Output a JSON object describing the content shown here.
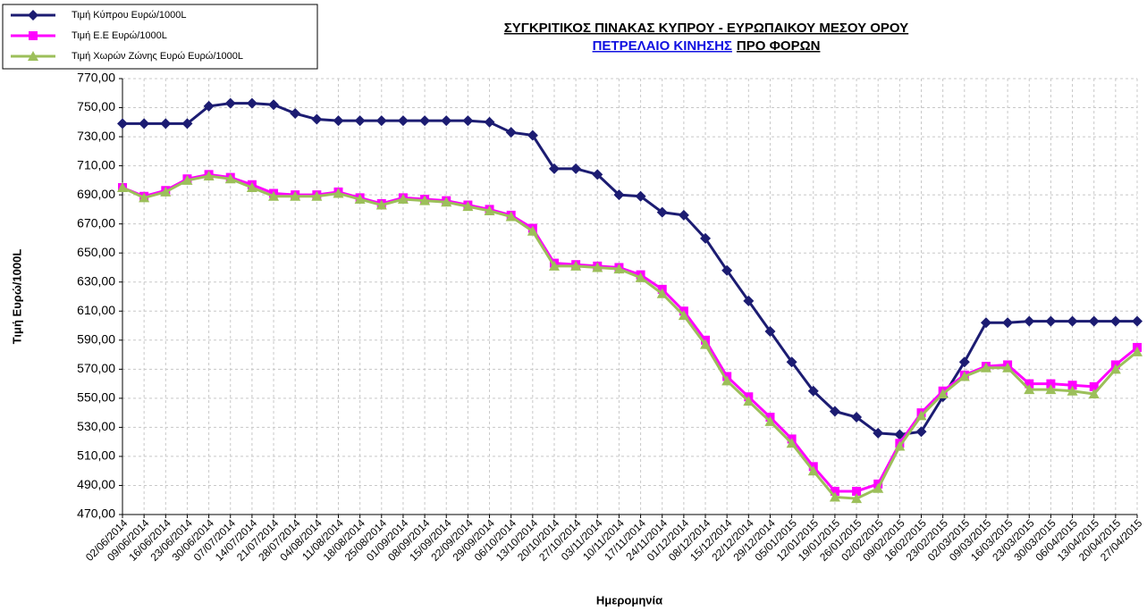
{
  "chart_data": {
    "type": "line",
    "title": "ΣΥΓΚΡΙΤΙΚΟΣ ΠΙΝΑΚΑΣ ΚΥΠΡΟΥ - ΕΥΡΩΠΑΙΚΟΥ ΜΕΣΟΥ ΟΡΟΥ",
    "subtitle": [
      "ΠΕΤΡΕΛΑΙΟ ΚΙΝΗΣΗΣ",
      "ΠΡΟ ΦΟΡΩΝ"
    ],
    "xlabel": "Ημερομηνία",
    "ylabel": "Τιμή Ευρώ/1000L",
    "categories": [
      "02/06/2014",
      "09/06/2014",
      "16/06/2014",
      "23/06/2014",
      "30/06/2014",
      "07/07/2014",
      "14/07/2014",
      "21/07/2014",
      "28/07/2014",
      "04/08/2014",
      "11/08/2014",
      "18/08/2014",
      "25/08/2014",
      "01/09/2014",
      "08/09/2014",
      "15/09/2014",
      "22/09/2014",
      "29/09/2014",
      "06/10/2014",
      "13/10/2014",
      "20/10/2014",
      "27/10/2014",
      "03/11/2014",
      "10/11/2014",
      "17/11/2014",
      "24/11/2014",
      "01/12/2014",
      "08/12/2014",
      "15/12/2014",
      "22/12/2014",
      "29/12/2014",
      "05/01/2015",
      "12/01/2015",
      "19/01/2015",
      "26/01/2015",
      "02/02/2015",
      "09/02/2015",
      "16/02/2015",
      "23/02/2015",
      "02/03/2015",
      "09/03/2015",
      "16/03/2015",
      "23/03/2015",
      "30/03/2015",
      "06/04/2015",
      "13/04/2015",
      "20/04/2015",
      "27/04/2015"
    ],
    "series": [
      {
        "name": "Τιμή Κύπρου Ευρώ/1000L",
        "color": "#1c1c72",
        "marker": "diamond",
        "values": [
          739,
          739,
          739,
          739,
          751,
          753,
          753,
          752,
          746,
          742,
          741,
          741,
          741,
          741,
          741,
          741,
          741,
          740,
          733,
          731,
          708,
          708,
          704,
          690,
          689,
          678,
          676,
          660,
          638,
          617,
          596,
          575,
          555,
          541,
          537,
          526,
          525,
          527,
          551,
          575,
          602,
          602,
          603,
          603,
          603,
          603,
          603,
          603
        ]
      },
      {
        "name": "Τιμή Ε.Ε Ευρώ/1000L",
        "color": "#ff00ff",
        "marker": "square",
        "values": [
          695,
          689,
          693,
          701,
          704,
          702,
          697,
          691,
          690,
          690,
          692,
          688,
          684,
          688,
          687,
          686,
          683,
          680,
          676,
          667,
          643,
          642,
          641,
          640,
          635,
          625,
          610,
          590,
          565,
          551,
          537,
          522,
          503,
          486,
          486,
          491,
          519,
          540,
          555,
          566,
          572,
          573,
          560,
          560,
          559,
          558,
          573,
          585
        ]
      },
      {
        "name": "Τιμή Χωρών Ζώνης Ευρώ Ευρώ/1000L",
        "color": "#9cbf5a",
        "marker": "triangle",
        "values": [
          695,
          688,
          692,
          700,
          703,
          701,
          695,
          689,
          689,
          689,
          691,
          687,
          683,
          687,
          686,
          685,
          682,
          679,
          675,
          665,
          641,
          641,
          640,
          639,
          633,
          622,
          607,
          587,
          562,
          548,
          534,
          519,
          500,
          482,
          481,
          488,
          517,
          538,
          553,
          565,
          571,
          571,
          556,
          556,
          555,
          553,
          570,
          582
        ]
      }
    ],
    "ylim": [
      470,
      770
    ],
    "yticks": [
      {
        "value": 470,
        "label": "470,00"
      },
      {
        "value": 490,
        "label": "490,00"
      },
      {
        "value": 510,
        "label": "510,00"
      },
      {
        "value": 530,
        "label": "530,00"
      },
      {
        "value": 550,
        "label": "550,00"
      },
      {
        "value": 570,
        "label": "570,00"
      },
      {
        "value": 590,
        "label": "590,00"
      },
      {
        "value": 610,
        "label": "610,00"
      },
      {
        "value": 630,
        "label": "630,00"
      },
      {
        "value": 650,
        "label": "650,00"
      },
      {
        "value": 670,
        "label": "670,00"
      },
      {
        "value": 690,
        "label": "690,00"
      },
      {
        "value": 710,
        "label": "710,00"
      },
      {
        "value": 730,
        "label": "730,00"
      },
      {
        "value": 750,
        "label": "750,00"
      },
      {
        "value": 770,
        "label": "770,00"
      }
    ],
    "grid": true,
    "legend": "top-left"
  }
}
